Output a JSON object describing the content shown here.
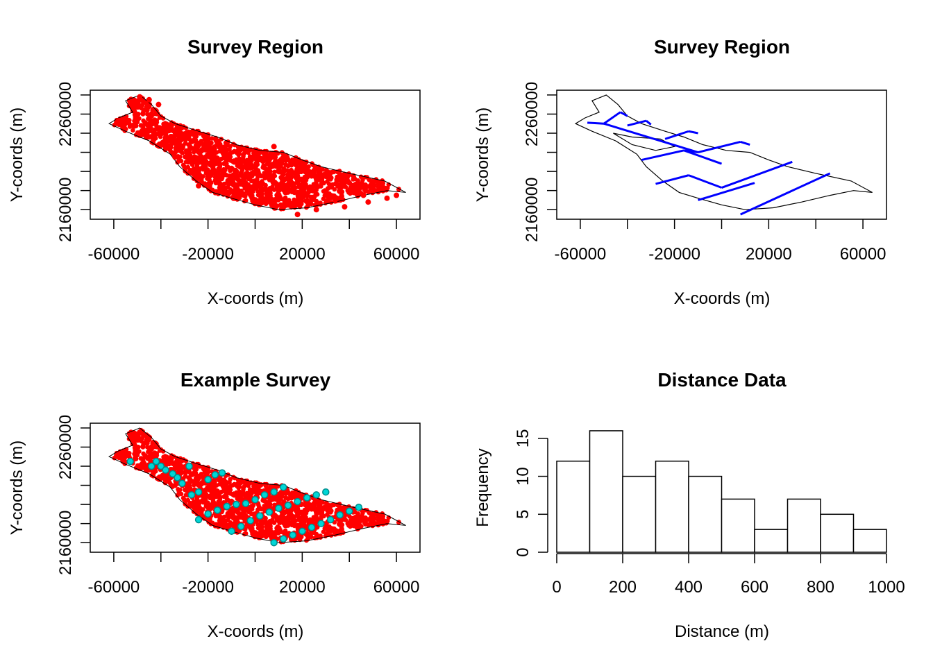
{
  "chart_data": [
    {
      "type": "scatter",
      "title": "Survey Region",
      "xlabel": "X-coords (m)",
      "ylabel": "Y-coords (m)",
      "xlim": [
        -70000,
        70000
      ],
      "ylim": [
        2150000,
        2285000
      ],
      "xticks": [
        -60000,
        -40000,
        -20000,
        0,
        20000,
        40000,
        60000
      ],
      "xtick_labels": [
        "-60000",
        "",
        "-20000",
        "",
        "20000",
        "",
        "60000"
      ],
      "yticks": [
        2160000,
        2180000,
        2200000,
        2220000,
        2240000,
        2260000,
        2280000
      ],
      "ytick_labels": [
        "2160000",
        "",
        "",
        "",
        "",
        "2260000",
        ""
      ],
      "series": [
        {
          "color": "#ff0000",
          "symbol": "filled-circle",
          "description_points": "dense density of points covering the region polygon",
          "x": [
            -49000,
            -45000,
            -41000,
            -58000,
            -52000,
            -46000,
            -38000,
            -30000,
            -20000,
            -12000,
            -4000,
            4000,
            8000,
            -36000,
            -26000,
            -18000,
            -8000,
            0,
            10000,
            20000,
            30000,
            40000,
            50000,
            60000,
            -24000,
            -12000,
            0,
            14000,
            26000,
            38000,
            48000,
            56000,
            -34000,
            -20000,
            -4000,
            10000,
            22000,
            34000,
            46000,
            18000
          ],
          "y": [
            2278000,
            2275000,
            2270000,
            2253000,
            2248000,
            2243000,
            2240000,
            2238000,
            2232000,
            2228000,
            2222000,
            2218000,
            2226000,
            2225000,
            2210000,
            2205000,
            2200000,
            2198000,
            2200000,
            2202000,
            2195000,
            2188000,
            2180000,
            2175000,
            2185000,
            2178000,
            2170000,
            2165000,
            2160000,
            2163000,
            2168000,
            2172000,
            2215000,
            2195000,
            2185000,
            2180000,
            2175000,
            2170000,
            2175000,
            2155000
          ]
        }
      ]
    },
    {
      "type": "line",
      "title": "Survey Region",
      "xlabel": "X-coords (m)",
      "ylabel": "Y-coords (m)",
      "xlim": [
        -70000,
        70000
      ],
      "ylim": [
        2150000,
        2285000
      ],
      "xticks": [
        -60000,
        -40000,
        -20000,
        0,
        20000,
        40000,
        60000
      ],
      "xtick_labels": [
        "-60000",
        "",
        "-20000",
        "",
        "20000",
        "",
        "60000"
      ],
      "yticks": [
        2160000,
        2180000,
        2200000,
        2220000,
        2240000,
        2260000,
        2280000
      ],
      "ytick_labels": [
        "2160000",
        "",
        "",
        "",
        "",
        "2260000",
        ""
      ],
      "transects": {
        "color": "#0000ff",
        "segments": [
          [
            [
              -57000,
              2251000
            ],
            [
              -50000,
              2250000
            ]
          ],
          [
            [
              -50000,
              2250000
            ],
            [
              -43000,
              2262000
            ]
          ],
          [
            [
              -50000,
              2250000
            ],
            [
              -10000,
              2220000
            ]
          ],
          [
            [
              -43000,
              2262000
            ],
            [
              -40000,
              2258000
            ]
          ],
          [
            [
              -40000,
              2248000
            ],
            [
              -32000,
              2253000
            ]
          ],
          [
            [
              -32000,
              2253000
            ],
            [
              -30000,
              2249000
            ]
          ],
          [
            [
              -24000,
              2234000
            ],
            [
              -14000,
              2242000
            ]
          ],
          [
            [
              -14000,
              2242000
            ],
            [
              -10000,
              2240000
            ]
          ],
          [
            [
              -34000,
              2212000
            ],
            [
              -16000,
              2222000
            ]
          ],
          [
            [
              -16000,
              2222000
            ],
            [
              -10000,
              2220000
            ]
          ],
          [
            [
              -10000,
              2220000
            ],
            [
              8000,
              2231000
            ]
          ],
          [
            [
              8000,
              2231000
            ],
            [
              12000,
              2228000
            ]
          ],
          [
            [
              -16000,
              2222000
            ],
            [
              0,
              2208000
            ]
          ],
          [
            [
              -28000,
              2187000
            ],
            [
              -14000,
              2196000
            ]
          ],
          [
            [
              -14000,
              2196000
            ],
            [
              0,
              2183000
            ]
          ],
          [
            [
              0,
              2183000
            ],
            [
              30000,
              2210000
            ]
          ],
          [
            [
              -10000,
              2170000
            ],
            [
              14000,
              2188000
            ]
          ],
          [
            [
              8000,
              2155000
            ],
            [
              46000,
              2198000
            ]
          ]
        ]
      }
    },
    {
      "type": "scatter",
      "title": "Example Survey",
      "xlabel": "X-coords (m)",
      "ylabel": "Y-coords (m)",
      "xlim": [
        -70000,
        70000
      ],
      "ylim": [
        2150000,
        2285000
      ],
      "xticks": [
        -60000,
        -40000,
        -20000,
        0,
        20000,
        40000,
        60000
      ],
      "xtick_labels": [
        "-60000",
        "",
        "-20000",
        "",
        "20000",
        "",
        "60000"
      ],
      "yticks": [
        2160000,
        2180000,
        2200000,
        2220000,
        2240000,
        2260000,
        2280000
      ],
      "ytick_labels": [
        "2160000",
        "",
        "",
        "",
        "",
        "2260000",
        ""
      ],
      "series": [
        {
          "color": "#00d6d6",
          "symbol": "circle",
          "x": [
            -53000,
            -44000,
            -42000,
            -40000,
            -38000,
            -35000,
            -33000,
            -31000,
            -28000,
            -27000,
            -24000,
            -20000,
            -17000,
            -14000,
            -24000,
            -20000,
            -16000,
            -12000,
            -8000,
            -4000,
            0,
            4000,
            8000,
            12000,
            -10000,
            -6000,
            -2000,
            2000,
            6000,
            10000,
            14000,
            18000,
            22000,
            26000,
            30000,
            8000,
            12000,
            16000,
            20000,
            24000,
            28000,
            32000,
            36000,
            40000,
            44000
          ],
          "y": [
            2245000,
            2240000,
            2245000,
            2240000,
            2236000,
            2232000,
            2228000,
            2222000,
            2240000,
            2210000,
            2213000,
            2226000,
            2231000,
            2233000,
            2184000,
            2190000,
            2194000,
            2198000,
            2200000,
            2201000,
            2205000,
            2210000,
            2213000,
            2218000,
            2172000,
            2177000,
            2183000,
            2188000,
            2192000,
            2196000,
            2199000,
            2203000,
            2207000,
            2210000,
            2213000,
            2160000,
            2164000,
            2168000,
            2172000,
            2176000,
            2180000,
            2184000,
            2189000,
            2193000,
            2197000
          ]
        }
      ]
    },
    {
      "type": "bar",
      "title": "Distance Data",
      "xlabel": "Distance (m)",
      "ylabel": "Frequency",
      "xlim": [
        0,
        1000
      ],
      "ylim": [
        0,
        17
      ],
      "xticks": [
        0,
        200,
        400,
        600,
        800,
        1000
      ],
      "xtick_labels": [
        "0",
        "200",
        "400",
        "600",
        "800",
        "1000"
      ],
      "yticks": [
        0,
        5,
        10,
        15
      ],
      "ytick_labels": [
        "0",
        "5",
        "10",
        "15"
      ],
      "bin_edges": [
        0,
        100,
        200,
        300,
        400,
        500,
        600,
        700,
        800,
        900,
        1000
      ],
      "values": [
        12,
        16,
        10,
        12,
        10,
        7,
        3,
        7,
        5,
        3
      ]
    }
  ]
}
